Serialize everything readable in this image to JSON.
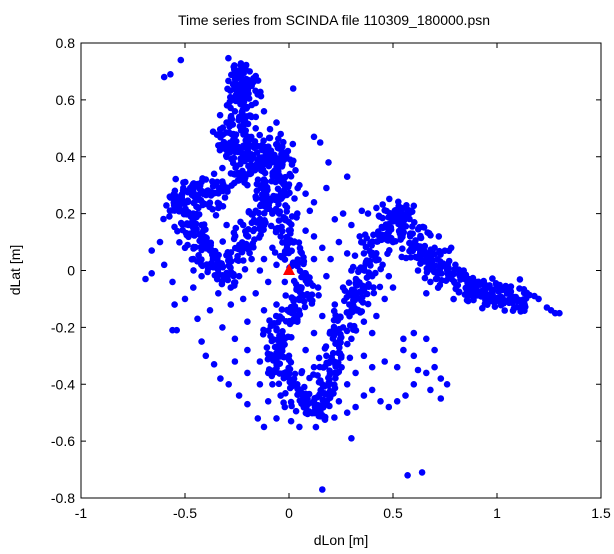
{
  "chart_data": {
    "type": "scatter",
    "title": "Time series from SCINDA file 110309_180000.psn",
    "xlabel": "dLon [m]",
    "ylabel": "dLat [m]",
    "xlim": [
      -1,
      1.5
    ],
    "ylim": [
      -0.8,
      0.8
    ],
    "xticks": [
      -1,
      -0.5,
      0,
      0.5,
      1,
      1.5
    ],
    "yticks": [
      -0.8,
      -0.6,
      -0.4,
      -0.2,
      0,
      0.2,
      0.4,
      0.6,
      0.8
    ],
    "xtick_labels": [
      "-1",
      "-0.5",
      "0",
      "0.5",
      "1",
      "1.5"
    ],
    "ytick_labels": [
      "-0.8",
      "-0.6",
      "-0.4",
      "-0.2",
      "0",
      "0.2",
      "0.4",
      "0.6",
      "0.8"
    ],
    "grid": false,
    "legend": "none",
    "series": [
      {
        "marker": "circle",
        "color": "#0000ff",
        "trace": [
          [
            -0.27,
            0.62
          ],
          [
            -0.25,
            0.6
          ],
          [
            -0.22,
            0.64
          ],
          [
            -0.24,
            0.69
          ],
          [
            -0.23,
            0.71
          ],
          [
            -0.21,
            0.65
          ],
          [
            -0.2,
            0.58
          ],
          [
            -0.22,
            0.53
          ],
          [
            -0.27,
            0.5
          ],
          [
            -0.3,
            0.46
          ],
          [
            -0.28,
            0.42
          ],
          [
            -0.24,
            0.4
          ],
          [
            -0.2,
            0.44
          ],
          [
            -0.16,
            0.46
          ],
          [
            -0.14,
            0.4
          ],
          [
            -0.18,
            0.35
          ],
          [
            -0.24,
            0.33
          ],
          [
            -0.31,
            0.31
          ],
          [
            -0.36,
            0.27
          ],
          [
            -0.4,
            0.24
          ],
          [
            -0.45,
            0.27
          ],
          [
            -0.48,
            0.3
          ],
          [
            -0.52,
            0.26
          ],
          [
            -0.55,
            0.22
          ],
          [
            -0.5,
            0.18
          ],
          [
            -0.46,
            0.14
          ],
          [
            -0.43,
            0.1
          ],
          [
            -0.4,
            0.06
          ],
          [
            -0.36,
            0.02
          ],
          [
            -0.32,
            -0.02
          ],
          [
            -0.28,
            0.02
          ],
          [
            -0.24,
            0.06
          ],
          [
            -0.2,
            0.1
          ],
          [
            -0.16,
            0.14
          ],
          [
            -0.14,
            0.18
          ],
          [
            -0.12,
            0.23
          ],
          [
            -0.1,
            0.28
          ],
          [
            -0.08,
            0.33
          ],
          [
            -0.1,
            0.38
          ],
          [
            -0.06,
            0.42
          ],
          [
            -0.04,
            0.38
          ],
          [
            -0.02,
            0.33
          ],
          [
            -0.04,
            0.27
          ],
          [
            -0.06,
            0.21
          ],
          [
            -0.03,
            0.15
          ],
          [
            0.0,
            0.1
          ],
          [
            0.03,
            0.05
          ],
          [
            0.06,
            0.0
          ],
          [
            0.08,
            -0.05
          ],
          [
            0.05,
            -0.1
          ],
          [
            0.02,
            -0.14
          ],
          [
            -0.02,
            -0.18
          ],
          [
            -0.06,
            -0.22
          ],
          [
            -0.08,
            -0.27
          ],
          [
            -0.05,
            -0.32
          ],
          [
            -0.02,
            -0.37
          ],
          [
            0.02,
            -0.41
          ],
          [
            0.06,
            -0.45
          ],
          [
            0.1,
            -0.49
          ],
          [
            0.14,
            -0.51
          ],
          [
            0.16,
            -0.46
          ],
          [
            0.18,
            -0.4
          ],
          [
            0.2,
            -0.34
          ],
          [
            0.22,
            -0.28
          ],
          [
            0.24,
            -0.22
          ],
          [
            0.27,
            -0.17
          ],
          [
            0.3,
            -0.13
          ],
          [
            0.33,
            -0.09
          ],
          [
            0.36,
            -0.05
          ],
          [
            0.38,
            0.0
          ],
          [
            0.4,
            0.05
          ],
          [
            0.42,
            0.1
          ],
          [
            0.45,
            0.14
          ],
          [
            0.48,
            0.18
          ],
          [
            0.52,
            0.2
          ],
          [
            0.56,
            0.18
          ],
          [
            0.58,
            0.14
          ],
          [
            0.6,
            0.1
          ],
          [
            0.62,
            0.06
          ],
          [
            0.66,
            0.04
          ],
          [
            0.7,
            0.02
          ],
          [
            0.74,
            0.0
          ],
          [
            0.78,
            -0.02
          ],
          [
            0.82,
            -0.04
          ],
          [
            0.86,
            -0.06
          ],
          [
            0.9,
            -0.08
          ],
          [
            0.94,
            -0.09
          ],
          [
            0.98,
            -0.1
          ],
          [
            1.02,
            -0.09
          ],
          [
            1.06,
            -0.08
          ],
          [
            1.1,
            -0.09
          ],
          [
            1.14,
            -0.1
          ]
        ],
        "points": [
          [
            -0.52,
            0.74
          ],
          [
            -0.57,
            0.69
          ],
          [
            -0.6,
            0.68
          ],
          [
            0.02,
            0.64
          ],
          [
            -0.12,
            0.56
          ],
          [
            -0.06,
            0.52
          ],
          [
            -0.04,
            0.48
          ],
          [
            0.12,
            0.47
          ],
          [
            0.15,
            0.45
          ],
          [
            0.19,
            0.38
          ],
          [
            0.28,
            0.33
          ],
          [
            0.05,
            0.3
          ],
          [
            0.08,
            0.27
          ],
          [
            0.12,
            0.24
          ],
          [
            0.18,
            0.29
          ],
          [
            0.1,
            0.21
          ],
          [
            -0.16,
            0.21
          ],
          [
            0.0,
            0.17
          ],
          [
            -0.38,
            0.07
          ],
          [
            -0.62,
            0.1
          ],
          [
            -0.66,
            0.07
          ],
          [
            -0.6,
            0.02
          ],
          [
            -0.66,
            -0.01
          ],
          [
            -0.69,
            -0.03
          ],
          [
            -0.56,
            -0.04
          ],
          [
            -0.55,
            -0.12
          ],
          [
            -0.54,
            -0.21
          ],
          [
            -0.56,
            -0.21
          ],
          [
            -0.44,
            -0.17
          ],
          [
            -0.42,
            -0.25
          ],
          [
            -0.4,
            -0.3
          ],
          [
            -0.36,
            -0.33
          ],
          [
            -0.33,
            -0.38
          ],
          [
            -0.29,
            -0.4
          ],
          [
            -0.24,
            -0.44
          ],
          [
            -0.2,
            -0.47
          ],
          [
            -0.15,
            -0.52
          ],
          [
            -0.12,
            -0.55
          ],
          [
            -0.06,
            -0.52
          ],
          [
            -0.02,
            -0.48
          ],
          [
            0.01,
            -0.53
          ],
          [
            0.05,
            -0.55
          ],
          [
            0.09,
            -0.5
          ],
          [
            0.13,
            -0.48
          ],
          [
            0.2,
            -0.44
          ],
          [
            0.24,
            -0.46
          ],
          [
            0.28,
            -0.5
          ],
          [
            0.32,
            -0.48
          ],
          [
            0.36,
            -0.44
          ],
          [
            0.4,
            -0.42
          ],
          [
            0.44,
            -0.46
          ],
          [
            0.48,
            -0.48
          ],
          [
            0.52,
            -0.46
          ],
          [
            0.56,
            -0.44
          ],
          [
            0.6,
            -0.4
          ],
          [
            0.62,
            -0.35
          ],
          [
            0.6,
            -0.3
          ],
          [
            0.55,
            -0.28
          ],
          [
            0.55,
            -0.24
          ],
          [
            0.6,
            -0.22
          ],
          [
            0.66,
            -0.24
          ],
          [
            0.7,
            -0.28
          ],
          [
            0.7,
            -0.34
          ],
          [
            0.73,
            -0.38
          ],
          [
            0.76,
            -0.4
          ],
          [
            0.73,
            -0.45
          ],
          [
            0.68,
            -0.42
          ],
          [
            0.66,
            -0.36
          ],
          [
            0.52,
            -0.34
          ],
          [
            0.46,
            -0.32
          ],
          [
            0.4,
            -0.34
          ],
          [
            0.36,
            -0.3
          ],
          [
            0.3,
            -0.24
          ],
          [
            0.26,
            -0.2
          ],
          [
            0.45,
            0.02
          ],
          [
            0.48,
            -0.02
          ],
          [
            0.5,
            -0.06
          ],
          [
            0.46,
            -0.1
          ],
          [
            0.42,
            -0.16
          ],
          [
            0.4,
            -0.22
          ],
          [
            0.35,
            0.21
          ],
          [
            0.38,
            0.2
          ],
          [
            0.42,
            0.22
          ],
          [
            0.54,
            0.22
          ],
          [
            0.58,
            0.21
          ],
          [
            0.54,
            0.15
          ],
          [
            0.5,
            0.1
          ],
          [
            0.62,
            0.0
          ],
          [
            0.68,
            0.04
          ],
          [
            0.7,
            0.08
          ],
          [
            0.72,
            0.12
          ],
          [
            0.74,
            0.02
          ],
          [
            0.68,
            -0.04
          ],
          [
            0.66,
            -0.08
          ],
          [
            0.78,
            0.08
          ],
          [
            0.8,
            0.02
          ],
          [
            0.84,
            0.0
          ],
          [
            0.88,
            -0.03
          ],
          [
            0.92,
            -0.05
          ],
          [
            1.18,
            -0.09
          ],
          [
            1.2,
            -0.1
          ],
          [
            1.24,
            -0.13
          ],
          [
            1.26,
            -0.14
          ],
          [
            1.28,
            -0.15
          ],
          [
            1.3,
            -0.15
          ],
          [
            0.3,
            -0.59
          ],
          [
            0.57,
            -0.72
          ],
          [
            0.64,
            -0.71
          ],
          [
            0.16,
            -0.77
          ],
          [
            -0.36,
            0.34
          ],
          [
            -0.4,
            0.32
          ],
          [
            -0.42,
            0.28
          ],
          [
            -0.34,
            0.22
          ],
          [
            -0.3,
            0.16
          ],
          [
            -0.26,
            0.12
          ],
          [
            -0.22,
            0.16
          ],
          [
            -0.18,
            0.04
          ],
          [
            -0.14,
            0.0
          ],
          [
            -0.1,
            -0.04
          ],
          [
            -0.16,
            -0.08
          ],
          [
            -0.22,
            -0.1
          ],
          [
            -0.28,
            -0.12
          ],
          [
            -0.34,
            -0.08
          ],
          [
            -0.38,
            -0.14
          ],
          [
            -0.32,
            -0.2
          ],
          [
            -0.26,
            -0.24
          ],
          [
            -0.2,
            -0.28
          ],
          [
            -0.14,
            -0.32
          ],
          [
            -0.1,
            -0.36
          ],
          [
            -0.14,
            -0.4
          ],
          [
            -0.2,
            -0.36
          ],
          [
            -0.26,
            -0.32
          ],
          [
            0.1,
            -0.1
          ],
          [
            0.14,
            -0.06
          ],
          [
            0.18,
            -0.02
          ],
          [
            0.2,
            0.04
          ],
          [
            0.16,
            0.08
          ],
          [
            0.12,
            0.12
          ],
          [
            0.24,
            0.1
          ],
          [
            0.28,
            0.06
          ],
          [
            0.3,
            0.0
          ],
          [
            0.26,
            -0.06
          ],
          [
            0.22,
            -0.12
          ],
          [
            0.16,
            -0.16
          ],
          [
            0.12,
            -0.22
          ],
          [
            0.08,
            -0.28
          ],
          [
            0.12,
            -0.34
          ],
          [
            0.16,
            -0.4
          ],
          [
            0.06,
            -0.36
          ],
          [
            0.0,
            -0.3
          ],
          [
            -0.02,
            -0.24
          ],
          [
            0.04,
            -0.18
          ],
          [
            -0.08,
            0.08
          ],
          [
            -0.12,
            0.04
          ],
          [
            -0.06,
            0.02
          ],
          [
            -0.02,
            -0.04
          ],
          [
            -0.3,
            0.4
          ],
          [
            -0.34,
            0.44
          ],
          [
            -0.32,
            0.36
          ],
          [
            -0.18,
            0.54
          ],
          [
            -0.16,
            0.5
          ],
          [
            -0.3,
            0.52
          ],
          [
            -0.26,
            0.56
          ],
          [
            -0.2,
            0.3
          ],
          [
            -0.16,
            0.26
          ],
          [
            -0.12,
            0.32
          ],
          [
            -0.08,
            0.2
          ],
          [
            -0.46,
            0.2
          ],
          [
            -0.42,
            0.16
          ],
          [
            -0.5,
            0.08
          ],
          [
            -0.46,
            0.04
          ],
          [
            -0.42,
            -0.02
          ],
          [
            -0.46,
            -0.06
          ],
          [
            -0.5,
            -0.1
          ],
          [
            0.34,
            0.12
          ],
          [
            0.3,
            0.16
          ],
          [
            0.26,
            0.2
          ],
          [
            0.22,
            0.18
          ],
          [
            0.36,
            0.06
          ],
          [
            0.4,
            -0.02
          ],
          [
            0.36,
            -0.18
          ],
          [
            0.32,
            -0.36
          ],
          [
            0.28,
            -0.4
          ],
          [
            0.22,
            -0.36
          ],
          [
            0.18,
            -0.3
          ],
          [
            0.08,
            -0.44
          ],
          [
            0.04,
            -0.4
          ],
          [
            -0.04,
            -0.44
          ],
          [
            -0.08,
            -0.4
          ],
          [
            -0.1,
            -0.46
          ],
          [
            -0.04,
            0.12
          ],
          [
            0.04,
            0.2
          ],
          [
            0.08,
            0.14
          ],
          [
            0.12,
            0.04
          ],
          [
            0.06,
            -0.06
          ],
          [
            -0.02,
            0.06
          ],
          [
            -0.24,
            -0.02
          ],
          [
            -0.28,
            -0.06
          ],
          [
            -0.2,
            -0.18
          ],
          [
            -0.12,
            -0.14
          ],
          [
            -0.06,
            -0.12
          ],
          [
            0.02,
            -0.1
          ]
        ]
      },
      {
        "marker": "triangle",
        "color": "#ff0000",
        "points": [
          [
            0.0,
            0.0
          ]
        ]
      }
    ]
  }
}
